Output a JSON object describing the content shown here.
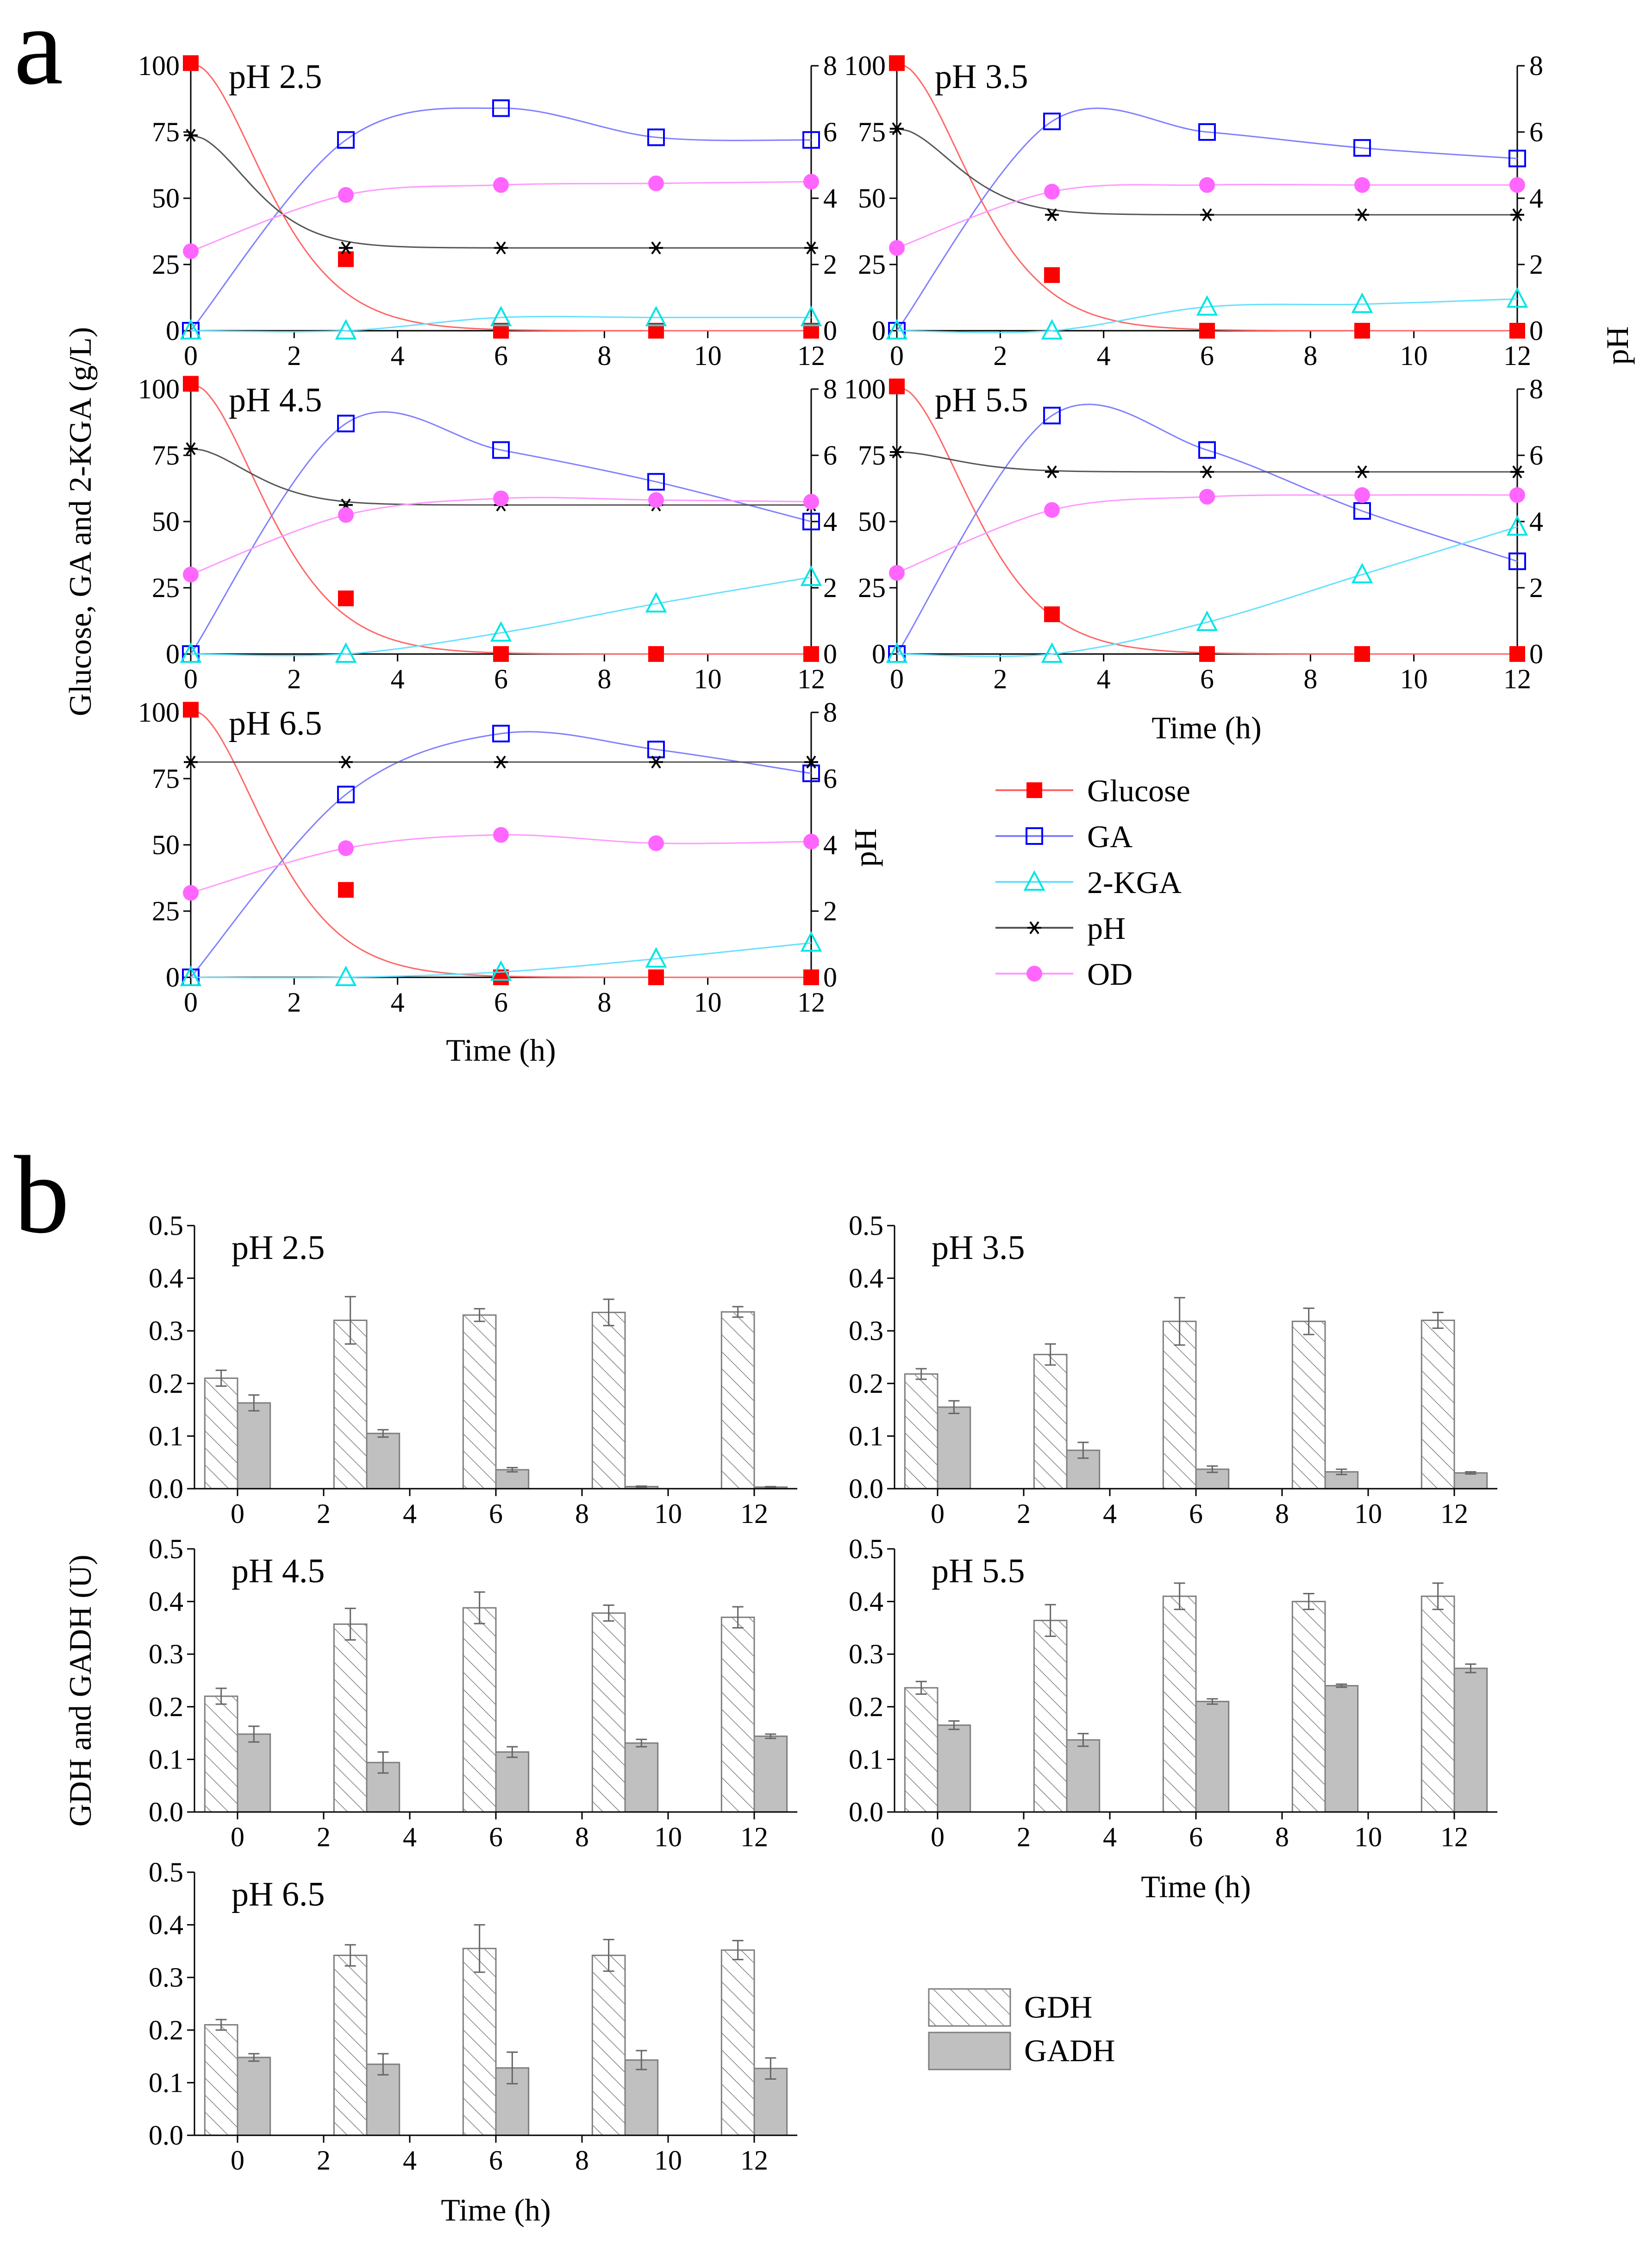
{
  "figure": {
    "panel_a_letter": "a",
    "panel_b_letter": "b",
    "a_left_axis_label": "Glucose, GA and 2-KGA (g/L)",
    "a_right_axis_label": "pH",
    "a_mid_pH_label": "pH",
    "b_left_axis_label": "GDH and GADH (U)",
    "xlabel": "Time (h)"
  },
  "colors": {
    "glucose": "#ff0000",
    "ga": "#0000ff",
    "kga": "#00e5e5",
    "ph": "#000000",
    "od": "#ff66ff",
    "glucose_line": "#ff6666",
    "ga_line": "#8080ff",
    "kga_line": "#66e0ff",
    "ph_line": "#555555",
    "od_line": "#ff99ff",
    "gdh_fill": "#ffffff",
    "gadh_fill": "#c0c0c0"
  },
  "legend_a": [
    {
      "key": "glucose",
      "label": "Glucose"
    },
    {
      "key": "ga",
      "label": "GA"
    },
    {
      "key": "kga",
      "label": "2-KGA"
    },
    {
      "key": "ph",
      "label": "pH"
    },
    {
      "key": "od",
      "label": "OD"
    }
  ],
  "legend_b": [
    {
      "key": "gdh",
      "label": "GDH"
    },
    {
      "key": "gadh",
      "label": "GADH"
    }
  ],
  "chart_data": [
    {
      "type": "line",
      "panel": "a",
      "title": "pH 2.5",
      "x": [
        0,
        3,
        6,
        9,
        12
      ],
      "xlim": [
        0,
        12
      ],
      "xticks": [
        0,
        2,
        4,
        6,
        8,
        10,
        12
      ],
      "xticklabels": [
        "0",
        "2",
        "4",
        "6",
        "8",
        "10",
        "12"
      ],
      "ylim": [
        0,
        100
      ],
      "yticks": [
        0,
        25,
        50,
        75,
        100
      ],
      "yticklabels": [
        "0",
        "25",
        "50",
        "75",
        "100"
      ],
      "y2lim": [
        0,
        8
      ],
      "y2ticks": [
        0,
        2,
        4,
        6,
        8
      ],
      "y2ticklabels": [
        "0",
        "2",
        "4",
        "6",
        "8"
      ],
      "series": [
        {
          "key": "glucose",
          "name": "Glucose",
          "axis": "left",
          "values": [
            101,
            27,
            0,
            0,
            0
          ]
        },
        {
          "key": "ga",
          "name": "GA",
          "axis": "left",
          "values": [
            0,
            72,
            84,
            73,
            72
          ]
        },
        {
          "key": "kga",
          "name": "2-KGA",
          "axis": "left",
          "values": [
            0,
            0,
            5,
            5,
            5
          ]
        },
        {
          "key": "ph",
          "name": "pH",
          "axis": "right",
          "values": [
            5.9,
            2.5,
            2.5,
            2.5,
            2.5
          ]
        },
        {
          "key": "od",
          "name": "OD",
          "axis": "right",
          "values": [
            2.4,
            4.1,
            4.4,
            4.45,
            4.5
          ]
        }
      ]
    },
    {
      "type": "line",
      "panel": "a",
      "title": "pH 3.5",
      "x": [
        0,
        3,
        6,
        9,
        12
      ],
      "xlim": [
        0,
        12
      ],
      "xticks": [
        0,
        2,
        4,
        6,
        8,
        10,
        12
      ],
      "xticklabels": [
        "0",
        "2",
        "4",
        "6",
        "8",
        "10",
        "12"
      ],
      "ylim": [
        0,
        100
      ],
      "yticks": [
        0,
        25,
        50,
        75,
        100
      ],
      "yticklabels": [
        "0",
        "25",
        "50",
        "75",
        "100"
      ],
      "y2lim": [
        0,
        8
      ],
      "y2ticks": [
        0,
        2,
        4,
        6,
        8
      ],
      "y2ticklabels": [
        "0",
        "2",
        "4",
        "6",
        "8"
      ],
      "series": [
        {
          "key": "glucose",
          "name": "Glucose",
          "axis": "left",
          "values": [
            101,
            21,
            0,
            0,
            0
          ]
        },
        {
          "key": "ga",
          "name": "GA",
          "axis": "left",
          "values": [
            0,
            79,
            75,
            69,
            65
          ]
        },
        {
          "key": "kga",
          "name": "2-KGA",
          "axis": "left",
          "values": [
            0,
            0,
            9,
            10,
            12
          ]
        },
        {
          "key": "ph",
          "name": "pH",
          "axis": "right",
          "values": [
            6.1,
            3.5,
            3.5,
            3.5,
            3.5
          ]
        },
        {
          "key": "od",
          "name": "OD",
          "axis": "right",
          "values": [
            2.5,
            4.2,
            4.4,
            4.4,
            4.4
          ]
        }
      ]
    },
    {
      "type": "line",
      "panel": "a",
      "title": "pH 4.5",
      "x": [
        0,
        3,
        6,
        9,
        12
      ],
      "xlim": [
        0,
        12
      ],
      "xticks": [
        0,
        2,
        4,
        6,
        8,
        10,
        12
      ],
      "xticklabels": [
        "0",
        "2",
        "4",
        "6",
        "8",
        "10",
        "12"
      ],
      "ylim": [
        0,
        100
      ],
      "yticks": [
        0,
        25,
        50,
        75,
        100
      ],
      "yticklabels": [
        "0",
        "25",
        "50",
        "75",
        "100"
      ],
      "y2lim": [
        0,
        8
      ],
      "y2ticks": [
        0,
        2,
        4,
        6,
        8
      ],
      "y2ticklabels": [
        "0",
        "2",
        "4",
        "6",
        "8"
      ],
      "series": [
        {
          "key": "glucose",
          "name": "Glucose",
          "axis": "left",
          "values": [
            102,
            21,
            0,
            0,
            0
          ]
        },
        {
          "key": "ga",
          "name": "GA",
          "axis": "left",
          "values": [
            0,
            87,
            77,
            65,
            50
          ]
        },
        {
          "key": "kga",
          "name": "2-KGA",
          "axis": "left",
          "values": [
            0,
            0,
            8,
            19,
            29
          ]
        },
        {
          "key": "ph",
          "name": "pH",
          "axis": "right",
          "values": [
            6.2,
            4.5,
            4.5,
            4.5,
            4.5
          ]
        },
        {
          "key": "od",
          "name": "OD",
          "axis": "right",
          "values": [
            2.4,
            4.2,
            4.7,
            4.65,
            4.6
          ]
        }
      ]
    },
    {
      "type": "line",
      "panel": "a",
      "title": "pH 5.5",
      "x": [
        0,
        3,
        6,
        9,
        12
      ],
      "xlim": [
        0,
        12
      ],
      "xticks": [
        0,
        2,
        4,
        6,
        8,
        10,
        12
      ],
      "xticklabels": [
        "0",
        "2",
        "4",
        "6",
        "8",
        "10",
        "12"
      ],
      "ylim": [
        0,
        100
      ],
      "yticks": [
        0,
        25,
        50,
        75,
        100
      ],
      "yticklabels": [
        "0",
        "25",
        "50",
        "75",
        "100"
      ],
      "y2lim": [
        0,
        8
      ],
      "y2ticks": [
        0,
        2,
        4,
        6,
        8
      ],
      "y2ticklabels": [
        "0",
        "2",
        "4",
        "6",
        "8"
      ],
      "series": [
        {
          "key": "glucose",
          "name": "Glucose",
          "axis": "left",
          "values": [
            101,
            15,
            0,
            0,
            0
          ]
        },
        {
          "key": "ga",
          "name": "GA",
          "axis": "left",
          "values": [
            0,
            90,
            77,
            54,
            35
          ]
        },
        {
          "key": "kga",
          "name": "2-KGA",
          "axis": "left",
          "values": [
            0,
            0,
            12,
            30,
            48
          ]
        },
        {
          "key": "ph",
          "name": "pH",
          "axis": "right",
          "values": [
            6.1,
            5.5,
            5.5,
            5.5,
            5.5
          ]
        },
        {
          "key": "od",
          "name": "OD",
          "axis": "right",
          "values": [
            2.45,
            4.35,
            4.75,
            4.8,
            4.8
          ]
        }
      ]
    },
    {
      "type": "line",
      "panel": "a",
      "title": "pH 6.5",
      "x": [
        0,
        3,
        6,
        9,
        12
      ],
      "xlim": [
        0,
        12
      ],
      "xticks": [
        0,
        2,
        4,
        6,
        8,
        10,
        12
      ],
      "xticklabels": [
        "0",
        "2",
        "4",
        "6",
        "8",
        "10",
        "12"
      ],
      "ylim": [
        0,
        100
      ],
      "yticks": [
        0,
        25,
        50,
        75,
        100
      ],
      "yticklabels": [
        "0",
        "25",
        "50",
        "75",
        "100"
      ],
      "y2lim": [
        0,
        8
      ],
      "y2ticks": [
        0,
        2,
        4,
        6,
        8
      ],
      "y2ticklabels": [
        "0",
        "2",
        "4",
        "6",
        "8"
      ],
      "series": [
        {
          "key": "glucose",
          "name": "Glucose",
          "axis": "left",
          "values": [
            101,
            33,
            0,
            0,
            0
          ]
        },
        {
          "key": "ga",
          "name": "GA",
          "axis": "left",
          "values": [
            0,
            69,
            92,
            86,
            77
          ]
        },
        {
          "key": "kga",
          "name": "2-KGA",
          "axis": "left",
          "values": [
            0,
            0,
            2,
            7,
            13
          ]
        },
        {
          "key": "ph",
          "name": "pH",
          "axis": "right",
          "values": [
            6.5,
            6.5,
            6.5,
            6.5,
            6.5
          ]
        },
        {
          "key": "od",
          "name": "OD",
          "axis": "right",
          "values": [
            2.55,
            3.9,
            4.3,
            4.05,
            4.1
          ]
        }
      ]
    },
    {
      "type": "bar",
      "panel": "b",
      "title": "pH 2.5",
      "categories": [
        "0",
        "3",
        "6",
        "9",
        "12"
      ],
      "xlim": [
        -1,
        13
      ],
      "xticks": [
        0,
        2,
        4,
        6,
        8,
        10,
        12
      ],
      "xticklabels": [
        "0",
        "2",
        "4",
        "6",
        "8",
        "10",
        "12"
      ],
      "ylim": [
        0,
        0.5
      ],
      "yticks": [
        0,
        0.1,
        0.2,
        0.3,
        0.4,
        0.5
      ],
      "yticklabels": [
        "0.0",
        "0.1",
        "0.2",
        "0.3",
        "0.4",
        "0.5"
      ],
      "series": [
        {
          "key": "gdh",
          "name": "GDH",
          "values": [
            0.21,
            0.32,
            0.33,
            0.335,
            0.336
          ],
          "errors": [
            0.015,
            0.045,
            0.012,
            0.025,
            0.01
          ]
        },
        {
          "key": "gadh",
          "name": "GADH",
          "values": [
            0.163,
            0.105,
            0.036,
            0.004,
            0.003
          ],
          "errors": [
            0.015,
            0.007,
            0.004,
            0.001,
            0.001
          ]
        }
      ]
    },
    {
      "type": "bar",
      "panel": "b",
      "title": "pH 3.5",
      "categories": [
        "0",
        "3",
        "6",
        "9",
        "12"
      ],
      "xlim": [
        -1,
        13
      ],
      "xticks": [
        0,
        2,
        4,
        6,
        8,
        10,
        12
      ],
      "xticklabels": [
        "0",
        "2",
        "4",
        "6",
        "8",
        "10",
        "12"
      ],
      "ylim": [
        0,
        0.5
      ],
      "yticks": [
        0,
        0.1,
        0.2,
        0.3,
        0.4,
        0.5
      ],
      "yticklabels": [
        "0.0",
        "0.1",
        "0.2",
        "0.3",
        "0.4",
        "0.5"
      ],
      "series": [
        {
          "key": "gdh",
          "name": "GDH",
          "values": [
            0.218,
            0.255,
            0.318,
            0.318,
            0.32
          ],
          "errors": [
            0.01,
            0.02,
            0.045,
            0.025,
            0.015
          ]
        },
        {
          "key": "gadh",
          "name": "GADH",
          "values": [
            0.155,
            0.073,
            0.037,
            0.032,
            0.03
          ],
          "errors": [
            0.012,
            0.015,
            0.006,
            0.005,
            0.002
          ]
        }
      ]
    },
    {
      "type": "bar",
      "panel": "b",
      "title": "pH 4.5",
      "categories": [
        "0",
        "3",
        "6",
        "9",
        "12"
      ],
      "xlim": [
        -1,
        13
      ],
      "xticks": [
        0,
        2,
        4,
        6,
        8,
        10,
        12
      ],
      "xticklabels": [
        "0",
        "2",
        "4",
        "6",
        "8",
        "10",
        "12"
      ],
      "ylim": [
        0,
        0.5
      ],
      "yticks": [
        0,
        0.1,
        0.2,
        0.3,
        0.4,
        0.5
      ],
      "yticklabels": [
        "0.0",
        "0.1",
        "0.2",
        "0.3",
        "0.4",
        "0.5"
      ],
      "series": [
        {
          "key": "gdh",
          "name": "GDH",
          "values": [
            0.22,
            0.357,
            0.388,
            0.378,
            0.37
          ],
          "errors": [
            0.015,
            0.03,
            0.03,
            0.015,
            0.02
          ]
        },
        {
          "key": "gadh",
          "name": "GADH",
          "values": [
            0.148,
            0.094,
            0.114,
            0.131,
            0.144
          ],
          "errors": [
            0.015,
            0.02,
            0.01,
            0.007,
            0.004
          ]
        }
      ]
    },
    {
      "type": "bar",
      "panel": "b",
      "title": "pH 5.5",
      "categories": [
        "0",
        "3",
        "6",
        "9",
        "12"
      ],
      "xlim": [
        -1,
        13
      ],
      "xticks": [
        0,
        2,
        4,
        6,
        8,
        10,
        12
      ],
      "xticklabels": [
        "0",
        "2",
        "4",
        "6",
        "8",
        "10",
        "12"
      ],
      "ylim": [
        0,
        0.5
      ],
      "yticks": [
        0,
        0.1,
        0.2,
        0.3,
        0.4,
        0.5
      ],
      "yticklabels": [
        "0.0",
        "0.1",
        "0.2",
        "0.3",
        "0.4",
        "0.5"
      ],
      "series": [
        {
          "key": "gdh",
          "name": "GDH",
          "values": [
            0.236,
            0.364,
            0.41,
            0.4,
            0.41
          ],
          "errors": [
            0.012,
            0.03,
            0.025,
            0.015,
            0.025
          ]
        },
        {
          "key": "gadh",
          "name": "GADH",
          "values": [
            0.165,
            0.137,
            0.21,
            0.24,
            0.273
          ],
          "errors": [
            0.008,
            0.012,
            0.005,
            0.003,
            0.008
          ]
        }
      ]
    },
    {
      "type": "bar",
      "panel": "b",
      "title": "pH 6.5",
      "categories": [
        "0",
        "3",
        "6",
        "9",
        "12"
      ],
      "xlim": [
        -1,
        13
      ],
      "xticks": [
        0,
        2,
        4,
        6,
        8,
        10,
        12
      ],
      "xticklabels": [
        "0",
        "2",
        "4",
        "6",
        "8",
        "10",
        "12"
      ],
      "ylim": [
        0,
        0.5
      ],
      "yticks": [
        0,
        0.1,
        0.2,
        0.3,
        0.4,
        0.5
      ],
      "yticklabels": [
        "0.0",
        "0.1",
        "0.2",
        "0.3",
        "0.4",
        "0.5"
      ],
      "series": [
        {
          "key": "gdh",
          "name": "GDH",
          "values": [
            0.21,
            0.342,
            0.355,
            0.342,
            0.352
          ],
          "errors": [
            0.01,
            0.02,
            0.045,
            0.03,
            0.018
          ]
        },
        {
          "key": "gadh",
          "name": "GADH",
          "values": [
            0.148,
            0.135,
            0.128,
            0.143,
            0.127
          ],
          "errors": [
            0.007,
            0.02,
            0.03,
            0.018,
            0.02
          ]
        }
      ]
    }
  ]
}
